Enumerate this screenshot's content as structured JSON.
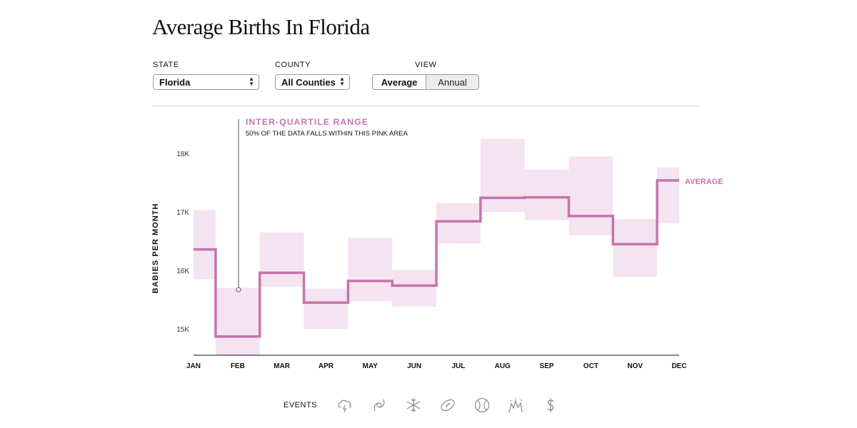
{
  "title": "Average Births In Florida",
  "controls": {
    "state_label": "STATE",
    "state_value": "Florida",
    "county_label": "COUNTY",
    "county_value": "All Counties",
    "view_label": "VIEW",
    "view_options": [
      "Average",
      "Annual"
    ],
    "view_selected": "Average"
  },
  "annotation": {
    "heading": "INTER-QUARTILE RANGE",
    "text": "50% OF THE DATA FALLS WITHIN THIS PINK AREA"
  },
  "events": {
    "label": "EVENTS",
    "icons": [
      "storm-cloud-icon",
      "hurricane-icon",
      "snowflake-icon",
      "football-icon",
      "baseball-icon",
      "fireworks-icon",
      "dollar-icon"
    ]
  },
  "colors": {
    "line": "#c574ad",
    "band": "#f4e3f0",
    "annotation": "#c574ad"
  },
  "chart_data": {
    "type": "line",
    "step": true,
    "categories": [
      "JAN",
      "FEB",
      "MAR",
      "APR",
      "MAY",
      "JUN",
      "JUL",
      "AUG",
      "SEP",
      "OCT",
      "NOV",
      "DEC"
    ],
    "series": [
      {
        "name": "AVERAGE",
        "values": [
          16360,
          14870,
          15960,
          15450,
          15820,
          15740,
          16840,
          17240,
          17250,
          16930,
          16450,
          17540
        ]
      }
    ],
    "iqr_low": [
      15850,
      14550,
      15720,
      15000,
      15470,
      15380,
      16460,
      17000,
      16860,
      16600,
      15890,
      16810
    ],
    "iqr_high": [
      17030,
      15700,
      16650,
      15690,
      16560,
      16010,
      17150,
      18250,
      17720,
      17950,
      16880,
      17760
    ],
    "ylabel": "BABIES PER MONTH",
    "y_ticks": [
      15000,
      16000,
      17000,
      18000
    ],
    "y_tick_labels": [
      "15K",
      "16K",
      "17K",
      "18K"
    ],
    "ylim": [
      14550,
      18550
    ],
    "grid": false
  }
}
